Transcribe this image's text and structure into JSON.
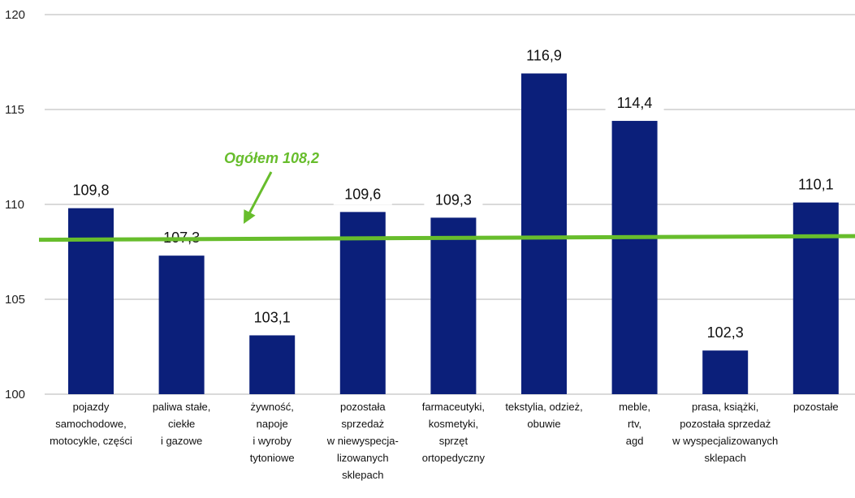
{
  "chart_data": {
    "type": "bar",
    "ylim": [
      100,
      120
    ],
    "yticks": [
      100,
      105,
      110,
      115,
      120
    ],
    "grid": true,
    "categories": [
      [
        "pojazdy",
        "samochodowe,",
        "motocykle, części"
      ],
      [
        "paliwa stałe,",
        "ciekłe",
        "i gazowe"
      ],
      [
        "żywność,",
        "napoje",
        "i wyroby",
        "tytoniowe"
      ],
      [
        "pozostała",
        "sprzedaż",
        "w niewyspecja-",
        "lizowanych",
        "sklepach"
      ],
      [
        "farmaceutyki,",
        "kosmetyki,",
        "sprzęt",
        "ortopedyczny"
      ],
      [
        "tekstylia, odzież,",
        "obuwie"
      ],
      [
        "meble,",
        "rtv,",
        "agd"
      ],
      [
        "prasa, książki,",
        "pozostała sprzedaż",
        "w wyspecjalizowanych",
        "sklepach"
      ],
      [
        "pozostałe"
      ]
    ],
    "values": [
      109.8,
      107.3,
      103.1,
      109.6,
      109.3,
      116.9,
      114.4,
      102.3,
      110.1
    ],
    "value_labels": [
      "109,8",
      "107,3",
      "103,1",
      "109,6",
      "109,3",
      "116,9",
      "114,4",
      "102,3",
      "110,1"
    ],
    "reference_line": {
      "label": "Ogółem 108,2",
      "value": 108.2
    }
  },
  "colors": {
    "bar": "#0b1f7a",
    "reference": "#67bd2c",
    "grid": "#b5b5b5",
    "text": "#111111"
  }
}
